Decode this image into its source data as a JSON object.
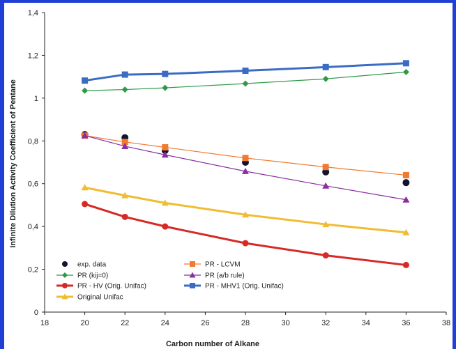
{
  "chart_data": {
    "type": "line",
    "title": "",
    "xlabel": "Carbon number of Alkane",
    "ylabel": "Infinite Dilution Activity Coefficient of Pentane",
    "xlim": [
      18,
      38
    ],
    "ylim": [
      0,
      1.4
    ],
    "xticks": [
      "18",
      "20",
      "22",
      "24",
      "26",
      "28",
      "30",
      "32",
      "34",
      "36",
      "38"
    ],
    "yticks": [
      "0",
      "0,2",
      "0,4",
      "0,6",
      "0,8",
      "1",
      "1,2",
      "1,4"
    ],
    "grid": false,
    "legend_position": "bottom-left",
    "series": [
      {
        "name": "exp. data",
        "marker": "circle",
        "line": false,
        "color": "#14142e",
        "x": [
          20,
          22,
          24,
          28,
          32,
          36
        ],
        "y": [
          0.83,
          0.815,
          0.755,
          0.7,
          0.655,
          0.605
        ]
      },
      {
        "name": "PR - LCVM",
        "marker": "square",
        "line": true,
        "color": "#f07a30",
        "lineWidth": 1.2,
        "x": [
          20,
          22,
          24,
          28,
          32,
          36
        ],
        "y": [
          0.825,
          0.795,
          0.77,
          0.72,
          0.678,
          0.64
        ]
      },
      {
        "name": "PR (kij=0)",
        "marker": "diamond",
        "line": true,
        "color": "#2e9a48",
        "lineWidth": 1.2,
        "x": [
          20,
          22,
          24,
          28,
          32,
          36
        ],
        "y": [
          1.035,
          1.04,
          1.048,
          1.068,
          1.09,
          1.122
        ]
      },
      {
        "name": "PR (a/b rule)",
        "marker": "triangle",
        "line": true,
        "color": "#8a2fa0",
        "lineWidth": 1.2,
        "x": [
          20,
          22,
          24,
          28,
          32,
          36
        ],
        "y": [
          0.825,
          0.775,
          0.735,
          0.658,
          0.59,
          0.525
        ]
      },
      {
        "name": "PR - HV  (Orig. Unifac)",
        "marker": "circle",
        "line": true,
        "color": "#d62a26",
        "lineWidth": 3,
        "x": [
          20,
          22,
          24,
          28,
          32,
          36
        ],
        "y": [
          0.505,
          0.445,
          0.4,
          0.322,
          0.265,
          0.22
        ]
      },
      {
        "name": "PR - MHV1  (Orig. Unifac)",
        "marker": "square",
        "line": true,
        "color": "#3a6cc4",
        "lineWidth": 3,
        "x": [
          20,
          22,
          24,
          28,
          32,
          36
        ],
        "y": [
          1.082,
          1.11,
          1.113,
          1.128,
          1.145,
          1.163
        ]
      },
      {
        "name": "Original Unifac",
        "marker": "triangle",
        "line": true,
        "color": "#f0bc32",
        "lineWidth": 3,
        "x": [
          20,
          22,
          24,
          28,
          32,
          36
        ],
        "y": [
          0.582,
          0.545,
          0.51,
          0.455,
          0.41,
          0.372
        ]
      }
    ]
  }
}
